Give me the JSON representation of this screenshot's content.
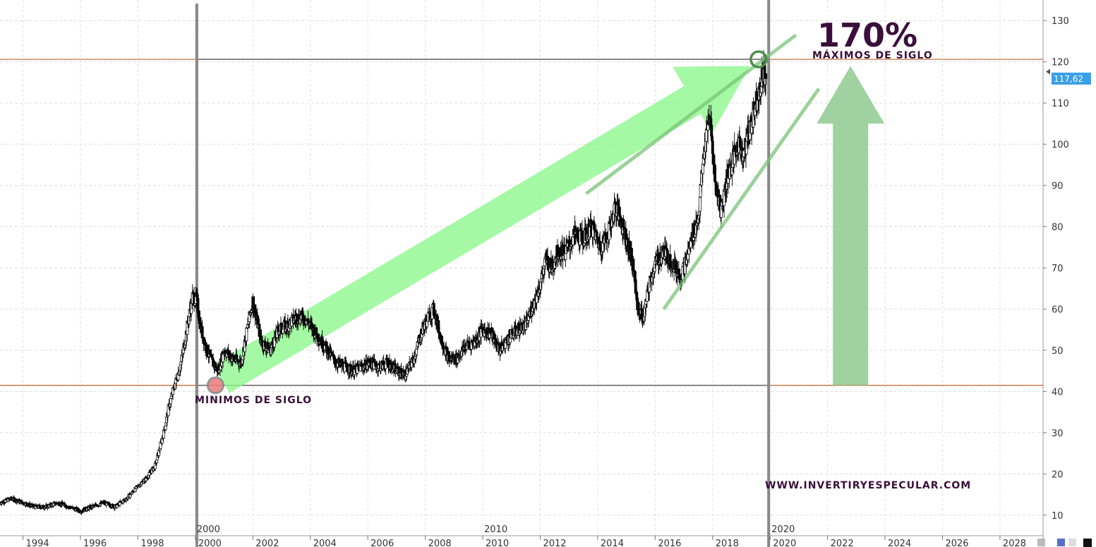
{
  "chart_data": {
    "type": "candlestick",
    "y_axis": {
      "min": 5,
      "max": 135,
      "ticks": [
        10,
        20,
        30,
        40,
        50,
        60,
        70,
        80,
        90,
        100,
        110,
        120,
        130
      ],
      "position": "right",
      "grid": true
    },
    "x_axis": {
      "min": 1993.2,
      "max": 2029.5,
      "major_labels": [
        "2000",
        "2010",
        "2020"
      ],
      "minor_labels": [
        "1994",
        "1996",
        "1998",
        "2000",
        "2002",
        "2004",
        "2006",
        "2008",
        "2010",
        "2012",
        "2014",
        "2016",
        "2018",
        "2020",
        "2022",
        "2024",
        "2026",
        "2028"
      ],
      "grid": true
    },
    "last_price": "117,62",
    "last_price_value": 117.62,
    "series": [
      {
        "x": [
          1993.2,
          1993.6,
          1994.0,
          1994.4,
          1994.8,
          1995.2,
          1995.6,
          1996.0,
          1996.4,
          1996.8,
          1997.2,
          1997.6,
          1998.0,
          1998.3,
          1998.6,
          1998.9,
          1999.1,
          1999.3,
          1999.5,
          1999.7,
          1999.9,
          2000.05,
          2000.2,
          2000.4,
          2000.6,
          2000.8,
          2001.0,
          2001.3,
          2001.6,
          2001.8,
          2002.0,
          2002.3,
          2002.6,
          2002.9,
          2003.2,
          2003.5,
          2003.8,
          2004.0,
          2004.3,
          2004.6,
          2004.9,
          2005.2,
          2005.5,
          2005.8,
          2006.1,
          2006.4,
          2006.7,
          2007.0,
          2007.3,
          2007.6,
          2007.9,
          2008.1,
          2008.3,
          2008.5,
          2008.8,
          2009.1,
          2009.4,
          2009.7,
          2010.0,
          2010.3,
          2010.6,
          2010.9,
          2011.2,
          2011.5,
          2011.8,
          2012.0,
          2012.2,
          2012.4,
          2012.6,
          2012.9,
          2013.2,
          2013.5,
          2013.8,
          2014.1,
          2014.4,
          2014.6,
          2014.8,
          2015.0,
          2015.2,
          2015.4,
          2015.6,
          2015.8,
          2016.0,
          2016.3,
          2016.6,
          2016.9,
          2017.1,
          2017.3,
          2017.5,
          2017.7,
          2017.9,
          2018.1,
          2018.3,
          2018.5,
          2018.7,
          2018.9,
          2019.1,
          2019.3,
          2019.5,
          2019.7,
          2019.85
        ],
        "close": [
          13,
          14,
          13,
          12,
          12,
          13,
          12,
          11,
          12,
          13,
          12,
          14,
          17,
          19,
          22,
          30,
          37,
          42,
          47,
          55,
          63,
          62,
          55,
          50,
          47,
          45,
          50,
          48,
          47,
          55,
          62,
          52,
          50,
          55,
          56,
          58,
          58,
          56,
          53,
          50,
          47,
          46,
          45,
          46,
          47,
          46,
          47,
          45,
          44,
          48,
          55,
          58,
          60,
          54,
          48,
          48,
          51,
          52,
          55,
          54,
          50,
          53,
          55,
          56,
          62,
          66,
          72,
          70,
          74,
          74,
          78,
          77,
          80,
          75,
          79,
          85,
          82,
          77,
          72,
          60,
          58,
          66,
          71,
          74,
          71,
          68,
          72,
          78,
          82,
          98,
          107,
          90,
          84,
          92,
          96,
          100,
          98,
          104,
          110,
          116,
          117.62
        ]
      }
    ],
    "annotations": {
      "pct": "170%",
      "max_label": "MÁXIMOS DE SIGLO",
      "min_label": "MINIMOS DE SIGLO",
      "url": "WWW.INVERTIRYESPECULAR.COM"
    },
    "colors": {
      "candle": "#000000",
      "hline": "#c8622a",
      "vline": "#888888",
      "arrow": "#8ef88e",
      "up_arrow": "#8fc98f",
      "trendline": "#79c479",
      "max_circle": "#4a8f4a",
      "min_circle_fill": "#f08080",
      "text_dark": "#3a0f3a",
      "price_tag": "#3aa0e8"
    }
  }
}
